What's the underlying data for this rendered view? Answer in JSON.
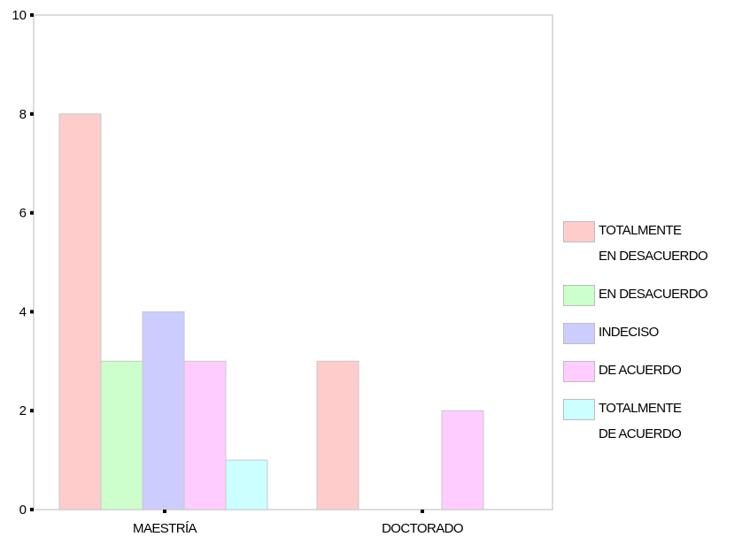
{
  "chart_data": {
    "type": "bar",
    "categories": [
      "MAESTRÍA",
      "DOCTORADO"
    ],
    "series": [
      {
        "name": "TOTALMENTE\nEN DESACUERDO",
        "values": [
          8,
          3
        ],
        "color": "#ffcccc"
      },
      {
        "name": "EN DESACUERDO",
        "values": [
          3,
          0
        ],
        "color": "#ccffcc"
      },
      {
        "name": "INDECISO",
        "values": [
          4,
          0
        ],
        "color": "#ccccff"
      },
      {
        "name": "DE ACUERDO",
        "values": [
          3,
          2
        ],
        "color": "#ffccff"
      },
      {
        "name": "TOTALMENTE\nDE ACUERDO",
        "values": [
          1,
          0
        ],
        "color": "#ccffff"
      }
    ],
    "yticks": [
      "0",
      "2",
      "4",
      "6",
      "8",
      "10"
    ],
    "ylim": [
      0,
      10
    ],
    "grid": false,
    "legend_position": "right"
  }
}
